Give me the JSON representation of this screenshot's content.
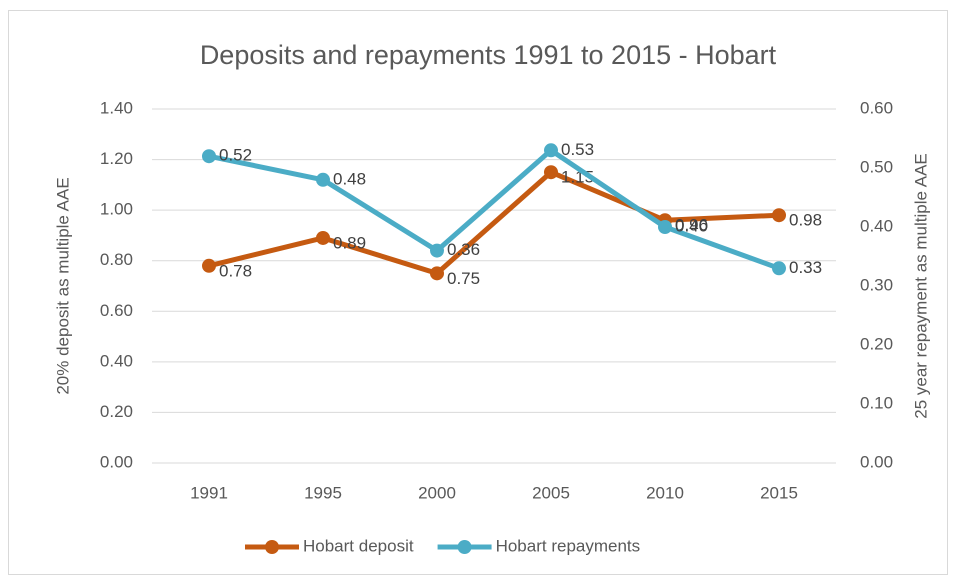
{
  "chart_data": {
    "type": "line",
    "title": "Deposits and repayments 1991 to 2015 - Hobart",
    "y_label": "20% deposit as multiple AAE",
    "y2_label": "25 year repayment as multiple AAE",
    "categories": [
      "1991",
      "1995",
      "2000",
      "2005",
      "2010",
      "2015"
    ],
    "series": [
      {
        "name": "Hobart deposit",
        "color": "#c55a11",
        "values": [
          0.78,
          0.89,
          0.75,
          1.15,
          0.96,
          0.98
        ],
        "value_labels": [
          "0.78",
          "0.89",
          "0.75",
          "1.15",
          "0.96",
          "0.98"
        ]
      },
      {
        "name": "Hobart repayments",
        "color": "#4bacc6",
        "axis": "y2",
        "values": [
          0.52,
          0.48,
          0.36,
          0.53,
          0.4,
          0.33
        ],
        "value_labels": [
          "0.52",
          "0.48",
          "0.36",
          "0.53",
          "0.40",
          "0.33"
        ]
      }
    ],
    "ylim": [
      0,
      1.4
    ],
    "yticks": [
      {
        "value": 0,
        "label": "0.00"
      },
      {
        "value": 0.2,
        "label": "0.20"
      },
      {
        "value": 0.4,
        "label": "0.40"
      },
      {
        "value": 0.6,
        "label": "0.60"
      },
      {
        "value": 0.8,
        "label": "0.80"
      },
      {
        "value": 1.0,
        "label": "1.00"
      },
      {
        "value": 1.2,
        "label": "1.20"
      },
      {
        "value": 1.4,
        "label": "1.40"
      }
    ],
    "y2lim": [
      0,
      0.6
    ],
    "y2ticks": [
      {
        "value": 0,
        "label": "0.00"
      },
      {
        "value": 0.1,
        "label": "0.10"
      },
      {
        "value": 0.2,
        "label": "0.20"
      },
      {
        "value": 0.3,
        "label": "0.30"
      },
      {
        "value": 0.4,
        "label": "0.40"
      },
      {
        "value": 0.5,
        "label": "0.50"
      },
      {
        "value": 0.6,
        "label": "0.60"
      }
    ],
    "grid": true,
    "legend": "bottom"
  }
}
